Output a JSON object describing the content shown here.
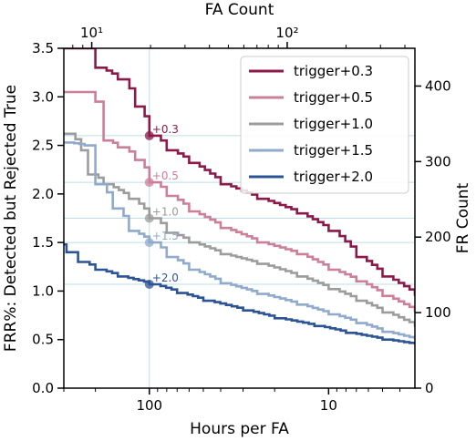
{
  "chart_data": {
    "type": "line",
    "title": "",
    "xlabel": "Hours per FA",
    "x2label": "FA Count",
    "ylabel": "FRR%: Detected but Rejected True",
    "y2label": "FR Count",
    "x_scale": "log-reversed",
    "x2_scale": "log",
    "xlim": [
      300,
      3.3
    ],
    "ylim": [
      0,
      3.5
    ],
    "y2lim": [
      0,
      450
    ],
    "grid": false,
    "legend_position": "top-right",
    "x_ticks": [
      {
        "value": 100,
        "label": "100"
      },
      {
        "value": 10,
        "label": "10"
      }
    ],
    "x2_ticks": [
      {
        "value": 10,
        "label": "10¹"
      },
      {
        "value": 100,
        "label": "10²"
      }
    ],
    "y_ticks": [
      "0.0",
      "0.5",
      "1.0",
      "1.5",
      "2.0",
      "2.5",
      "3.0",
      "3.5"
    ],
    "y2_ticks": [
      "0",
      "100",
      "200",
      "300",
      "400"
    ],
    "reference_lines": {
      "x": 100,
      "y": [
        2.6,
        2.12,
        1.75,
        1.5,
        1.07
      ]
    },
    "series": [
      {
        "name": "trigger+0.3",
        "color": "#8b1a4a",
        "x": [
          300,
          205,
          200,
          150,
          120,
          100,
          80,
          60,
          40,
          25,
          15,
          10,
          7,
          5,
          3.3
        ],
        "y": [
          3.5,
          3.5,
          3.3,
          3.18,
          2.9,
          2.6,
          2.45,
          2.32,
          2.1,
          1.95,
          1.8,
          1.62,
          1.35,
          1.15,
          0.95
        ],
        "annotation": {
          "x": 100,
          "y": 2.6,
          "label": "+0.3"
        }
      },
      {
        "name": "trigger+0.5",
        "color": "#cc7f98",
        "x": [
          300,
          220,
          200,
          180,
          150,
          120,
          100,
          80,
          60,
          40,
          25,
          15,
          10,
          7,
          5,
          3.3
        ],
        "y": [
          3.05,
          3.05,
          2.95,
          2.55,
          2.48,
          2.35,
          2.12,
          1.98,
          1.82,
          1.65,
          1.5,
          1.38,
          1.22,
          1.1,
          0.95,
          0.78
        ],
        "annotation": {
          "x": 100,
          "y": 2.12,
          "label": "+0.5"
        }
      },
      {
        "name": "trigger+1.0",
        "color": "#9c9c9c",
        "x": [
          300,
          240,
          220,
          180,
          130,
          100,
          80,
          60,
          40,
          25,
          15,
          10,
          7,
          5,
          3.3
        ],
        "y": [
          2.62,
          2.45,
          2.2,
          2.1,
          1.95,
          1.75,
          1.6,
          1.5,
          1.38,
          1.28,
          1.15,
          1.02,
          0.9,
          0.78,
          0.63
        ],
        "annotation": {
          "x": 100,
          "y": 1.75,
          "label": "+1.0"
        }
      },
      {
        "name": "trigger+1.5",
        "color": "#8faacb",
        "x": [
          300,
          230,
          200,
          160,
          130,
          100,
          80,
          60,
          40,
          25,
          15,
          10,
          7,
          5,
          3.3
        ],
        "y": [
          2.53,
          2.5,
          2.1,
          1.85,
          1.62,
          1.5,
          1.35,
          1.22,
          1.08,
          0.97,
          0.86,
          0.76,
          0.67,
          0.58,
          0.5
        ],
        "annotation": {
          "x": 100,
          "y": 1.5,
          "label": "+1.5"
        }
      },
      {
        "name": "trigger+2.0",
        "color": "#2c5494",
        "x": [
          300,
          290,
          250,
          200,
          150,
          100,
          70,
          50,
          30,
          20,
          12,
          8,
          5,
          3.3
        ],
        "y": [
          1.48,
          1.4,
          1.3,
          1.22,
          1.15,
          1.07,
          0.98,
          0.9,
          0.8,
          0.72,
          0.64,
          0.57,
          0.5,
          0.45
        ],
        "annotation": {
          "x": 100,
          "y": 1.07,
          "label": "+2.0"
        }
      }
    ]
  }
}
